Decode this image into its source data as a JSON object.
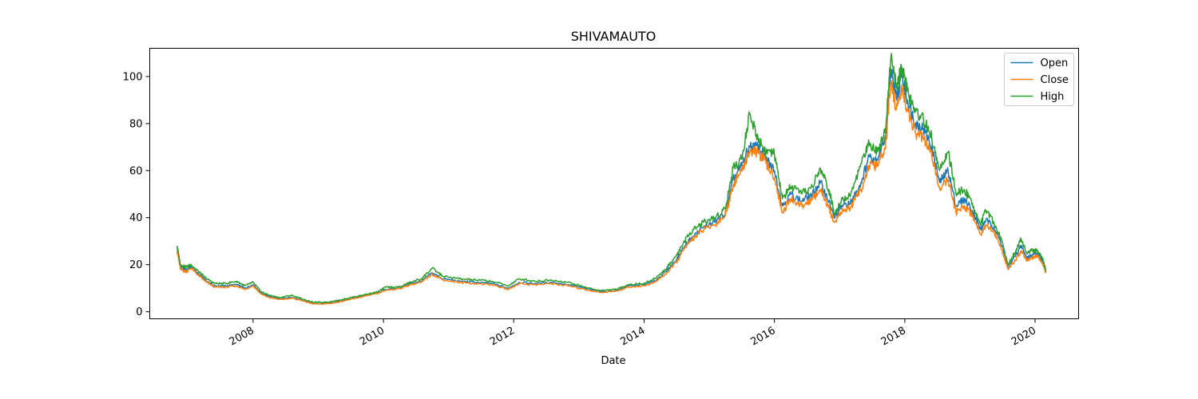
{
  "chart_data": {
    "type": "line",
    "title": "SHIVAMAUTO",
    "xlabel": "Date",
    "ylabel": "",
    "x_ticks": [
      "2008",
      "2010",
      "2012",
      "2014",
      "2016",
      "2018",
      "2020"
    ],
    "y_ticks": [
      0,
      20,
      40,
      60,
      80,
      100
    ],
    "xlim": [
      "2006-06-01",
      "2020-09-01"
    ],
    "ylim": [
      -3,
      112
    ],
    "grid": false,
    "legend_position": "top-right",
    "series": [
      {
        "name": "Open",
        "color": "#1f77b4",
        "points": [
          [
            "2006-11-01",
            27
          ],
          [
            "2006-11-20",
            19
          ],
          [
            "2006-12-20",
            18
          ],
          [
            "2007-01-20",
            19
          ],
          [
            "2007-03-01",
            16
          ],
          [
            "2007-04-15",
            13
          ],
          [
            "2007-06-01",
            11
          ],
          [
            "2007-08-01",
            11
          ],
          [
            "2007-10-01",
            11.5
          ],
          [
            "2007-11-15",
            10
          ],
          [
            "2008-01-01",
            11.5
          ],
          [
            "2008-02-15",
            8
          ],
          [
            "2008-04-01",
            6.5
          ],
          [
            "2008-06-01",
            5.5
          ],
          [
            "2008-08-01",
            6
          ],
          [
            "2008-10-01",
            5
          ],
          [
            "2008-12-01",
            3.5
          ],
          [
            "2009-02-01",
            3.5
          ],
          [
            "2009-04-01",
            4
          ],
          [
            "2009-06-01",
            5
          ],
          [
            "2009-08-01",
            6
          ],
          [
            "2009-10-01",
            7
          ],
          [
            "2009-12-01",
            8
          ],
          [
            "2010-01-15",
            9.5
          ],
          [
            "2010-04-01",
            10
          ],
          [
            "2010-06-01",
            12
          ],
          [
            "2010-08-01",
            13
          ],
          [
            "2010-10-01",
            16.5
          ],
          [
            "2010-12-01",
            14
          ],
          [
            "2011-03-01",
            13
          ],
          [
            "2011-06-01",
            12.5
          ],
          [
            "2011-09-01",
            12
          ],
          [
            "2011-12-01",
            10
          ],
          [
            "2012-02-01",
            12.5
          ],
          [
            "2012-05-01",
            12
          ],
          [
            "2012-08-01",
            12.5
          ],
          [
            "2012-11-01",
            11.5
          ],
          [
            "2013-02-01",
            10
          ],
          [
            "2013-05-01",
            8.5
          ],
          [
            "2013-08-01",
            9
          ],
          [
            "2013-10-01",
            11
          ],
          [
            "2014-01-01",
            11.5
          ],
          [
            "2014-03-01",
            13
          ],
          [
            "2014-05-01",
            17
          ],
          [
            "2014-07-01",
            22
          ],
          [
            "2014-08-15",
            28
          ],
          [
            "2014-10-01",
            32
          ],
          [
            "2014-12-01",
            36
          ],
          [
            "2015-02-01",
            38
          ],
          [
            "2015-04-01",
            42
          ],
          [
            "2015-05-15",
            56
          ],
          [
            "2015-07-01",
            62
          ],
          [
            "2015-08-15",
            70
          ],
          [
            "2015-10-01",
            70
          ],
          [
            "2015-11-15",
            65
          ],
          [
            "2016-01-01",
            60
          ],
          [
            "2016-02-15",
            45
          ],
          [
            "2016-04-01",
            50
          ],
          [
            "2016-06-01",
            47
          ],
          [
            "2016-08-01",
            50
          ],
          [
            "2016-09-15",
            55
          ],
          [
            "2016-11-01",
            47
          ],
          [
            "2016-12-01",
            40
          ],
          [
            "2017-01-15",
            45
          ],
          [
            "2017-03-01",
            46
          ],
          [
            "2017-05-01",
            55
          ],
          [
            "2017-06-15",
            66
          ],
          [
            "2017-08-01",
            65
          ],
          [
            "2017-09-15",
            75
          ],
          [
            "2017-10-15",
            103
          ],
          [
            "2017-11-15",
            90
          ],
          [
            "2017-12-15",
            100
          ],
          [
            "2018-01-15",
            90
          ],
          [
            "2018-03-01",
            80
          ],
          [
            "2018-04-15",
            78
          ],
          [
            "2018-06-01",
            70
          ],
          [
            "2018-07-15",
            55
          ],
          [
            "2018-09-01",
            60
          ],
          [
            "2018-10-15",
            45
          ],
          [
            "2018-12-01",
            48
          ],
          [
            "2019-01-15",
            43
          ],
          [
            "2019-03-01",
            35
          ],
          [
            "2019-04-01",
            39
          ],
          [
            "2019-05-15",
            36
          ],
          [
            "2019-07-01",
            28
          ],
          [
            "2019-08-01",
            19
          ],
          [
            "2019-09-15",
            24
          ],
          [
            "2019-10-15",
            28
          ],
          [
            "2019-11-15",
            23
          ],
          [
            "2019-12-15",
            24
          ],
          [
            "2020-01-15",
            25
          ],
          [
            "2020-02-15",
            21
          ],
          [
            "2020-03-01",
            17
          ]
        ]
      },
      {
        "name": "Close",
        "color": "#ff7f0e",
        "points": [
          [
            "2006-11-01",
            26
          ],
          [
            "2006-11-20",
            18
          ],
          [
            "2006-12-20",
            17
          ],
          [
            "2007-01-20",
            18.5
          ],
          [
            "2007-03-01",
            15.5
          ],
          [
            "2007-04-15",
            12.5
          ],
          [
            "2007-06-01",
            10.5
          ],
          [
            "2007-08-01",
            10.5
          ],
          [
            "2007-10-01",
            11
          ],
          [
            "2007-11-15",
            9.5
          ],
          [
            "2008-01-01",
            11
          ],
          [
            "2008-02-15",
            7.5
          ],
          [
            "2008-04-01",
            6
          ],
          [
            "2008-06-01",
            5.2
          ],
          [
            "2008-08-01",
            5.8
          ],
          [
            "2008-10-01",
            4.8
          ],
          [
            "2008-12-01",
            3.3
          ],
          [
            "2009-02-01",
            3.3
          ],
          [
            "2009-04-01",
            3.8
          ],
          [
            "2009-06-01",
            4.8
          ],
          [
            "2009-08-01",
            5.8
          ],
          [
            "2009-10-01",
            6.8
          ],
          [
            "2009-12-01",
            7.8
          ],
          [
            "2010-01-15",
            9.2
          ],
          [
            "2010-04-01",
            9.8
          ],
          [
            "2010-06-01",
            11.5
          ],
          [
            "2010-08-01",
            12.5
          ],
          [
            "2010-10-01",
            16
          ],
          [
            "2010-12-01",
            13.5
          ],
          [
            "2011-03-01",
            12.5
          ],
          [
            "2011-06-01",
            12
          ],
          [
            "2011-09-01",
            11.5
          ],
          [
            "2011-12-01",
            9.5
          ],
          [
            "2012-02-01",
            12
          ],
          [
            "2012-05-01",
            11.5
          ],
          [
            "2012-08-01",
            12
          ],
          [
            "2012-11-01",
            11
          ],
          [
            "2013-02-01",
            9.5
          ],
          [
            "2013-05-01",
            8.2
          ],
          [
            "2013-08-01",
            8.8
          ],
          [
            "2013-10-01",
            10.5
          ],
          [
            "2014-01-01",
            11
          ],
          [
            "2014-03-01",
            12.5
          ],
          [
            "2014-05-01",
            16
          ],
          [
            "2014-07-01",
            21
          ],
          [
            "2014-08-15",
            27
          ],
          [
            "2014-10-01",
            31
          ],
          [
            "2014-12-01",
            35
          ],
          [
            "2015-02-01",
            37
          ],
          [
            "2015-04-01",
            41
          ],
          [
            "2015-05-15",
            54
          ],
          [
            "2015-07-01",
            60
          ],
          [
            "2015-08-15",
            68
          ],
          [
            "2015-10-01",
            68
          ],
          [
            "2015-11-15",
            63
          ],
          [
            "2016-01-01",
            57
          ],
          [
            "2016-02-15",
            42
          ],
          [
            "2016-04-01",
            48
          ],
          [
            "2016-06-01",
            45
          ],
          [
            "2016-08-01",
            48
          ],
          [
            "2016-09-15",
            52
          ],
          [
            "2016-11-01",
            44
          ],
          [
            "2016-12-01",
            38
          ],
          [
            "2017-01-15",
            43
          ],
          [
            "2017-03-01",
            44
          ],
          [
            "2017-05-01",
            52
          ],
          [
            "2017-06-15",
            62
          ],
          [
            "2017-08-01",
            62
          ],
          [
            "2017-09-15",
            70
          ],
          [
            "2017-10-15",
            98
          ],
          [
            "2017-11-15",
            86
          ],
          [
            "2017-12-15",
            95
          ],
          [
            "2018-01-15",
            86
          ],
          [
            "2018-03-01",
            76
          ],
          [
            "2018-04-15",
            74
          ],
          [
            "2018-06-01",
            66
          ],
          [
            "2018-07-15",
            53
          ],
          [
            "2018-09-01",
            56
          ],
          [
            "2018-10-15",
            42
          ],
          [
            "2018-12-01",
            45
          ],
          [
            "2019-01-15",
            41
          ],
          [
            "2019-03-01",
            33
          ],
          [
            "2019-04-01",
            37
          ],
          [
            "2019-05-15",
            34
          ],
          [
            "2019-07-01",
            26
          ],
          [
            "2019-08-01",
            18
          ],
          [
            "2019-09-15",
            22
          ],
          [
            "2019-10-15",
            26
          ],
          [
            "2019-11-15",
            22
          ],
          [
            "2019-12-15",
            23
          ],
          [
            "2020-01-15",
            24
          ],
          [
            "2020-02-15",
            20
          ],
          [
            "2020-03-01",
            16.5
          ]
        ]
      },
      {
        "name": "High",
        "color": "#2ca02c",
        "points": [
          [
            "2006-11-01",
            28
          ],
          [
            "2006-11-20",
            20
          ],
          [
            "2006-12-20",
            19
          ],
          [
            "2007-01-20",
            20
          ],
          [
            "2007-03-01",
            17
          ],
          [
            "2007-04-15",
            14
          ],
          [
            "2007-06-01",
            12
          ],
          [
            "2007-08-01",
            12
          ],
          [
            "2007-10-01",
            13
          ],
          [
            "2007-11-15",
            11
          ],
          [
            "2008-01-01",
            12.5
          ],
          [
            "2008-02-15",
            8.5
          ],
          [
            "2008-04-01",
            7
          ],
          [
            "2008-06-01",
            6
          ],
          [
            "2008-08-01",
            7
          ],
          [
            "2008-10-01",
            5.5
          ],
          [
            "2008-12-01",
            4
          ],
          [
            "2009-02-01",
            4
          ],
          [
            "2009-04-01",
            4.5
          ],
          [
            "2009-06-01",
            5.5
          ],
          [
            "2009-08-01",
            6.5
          ],
          [
            "2009-10-01",
            7.5
          ],
          [
            "2009-12-01",
            8.5
          ],
          [
            "2010-01-15",
            10.5
          ],
          [
            "2010-04-01",
            10.5
          ],
          [
            "2010-06-01",
            12.5
          ],
          [
            "2010-08-01",
            14
          ],
          [
            "2010-10-01",
            18.5
          ],
          [
            "2010-12-01",
            15
          ],
          [
            "2011-03-01",
            14
          ],
          [
            "2011-06-01",
            13.5
          ],
          [
            "2011-09-01",
            13
          ],
          [
            "2011-12-01",
            11
          ],
          [
            "2012-02-01",
            14
          ],
          [
            "2012-05-01",
            13
          ],
          [
            "2012-08-01",
            13.5
          ],
          [
            "2012-11-01",
            12.5
          ],
          [
            "2013-02-01",
            10.5
          ],
          [
            "2013-05-01",
            9
          ],
          [
            "2013-08-01",
            9.5
          ],
          [
            "2013-10-01",
            11.5
          ],
          [
            "2014-01-01",
            12
          ],
          [
            "2014-03-01",
            14
          ],
          [
            "2014-05-01",
            18
          ],
          [
            "2014-07-01",
            24
          ],
          [
            "2014-08-15",
            30
          ],
          [
            "2014-10-01",
            35
          ],
          [
            "2014-12-01",
            38
          ],
          [
            "2015-02-01",
            40
          ],
          [
            "2015-04-01",
            44
          ],
          [
            "2015-05-15",
            61
          ],
          [
            "2015-07-01",
            65
          ],
          [
            "2015-08-15",
            84
          ],
          [
            "2015-10-01",
            74
          ],
          [
            "2015-11-15",
            68
          ],
          [
            "2016-01-01",
            67
          ],
          [
            "2016-02-15",
            48
          ],
          [
            "2016-04-01",
            53
          ],
          [
            "2016-06-01",
            50
          ],
          [
            "2016-08-01",
            53
          ],
          [
            "2016-09-15",
            61
          ],
          [
            "2016-11-01",
            52
          ],
          [
            "2016-12-01",
            42
          ],
          [
            "2017-01-15",
            48
          ],
          [
            "2017-03-01",
            49
          ],
          [
            "2017-05-01",
            63
          ],
          [
            "2017-06-15",
            72
          ],
          [
            "2017-08-01",
            68
          ],
          [
            "2017-09-15",
            78
          ],
          [
            "2017-10-15",
            108
          ],
          [
            "2017-11-15",
            95
          ],
          [
            "2017-12-15",
            104
          ],
          [
            "2018-01-15",
            94
          ],
          [
            "2018-03-01",
            85
          ],
          [
            "2018-04-15",
            82
          ],
          [
            "2018-06-01",
            74
          ],
          [
            "2018-07-15",
            60
          ],
          [
            "2018-09-01",
            68
          ],
          [
            "2018-10-15",
            50
          ],
          [
            "2018-12-01",
            52
          ],
          [
            "2019-01-15",
            46
          ],
          [
            "2019-03-01",
            37
          ],
          [
            "2019-04-01",
            43
          ],
          [
            "2019-05-15",
            38
          ],
          [
            "2019-07-01",
            30
          ],
          [
            "2019-08-01",
            20
          ],
          [
            "2019-09-15",
            26
          ],
          [
            "2019-10-15",
            31
          ],
          [
            "2019-11-15",
            25
          ],
          [
            "2019-12-15",
            26
          ],
          [
            "2020-01-15",
            26
          ],
          [
            "2020-02-15",
            22
          ],
          [
            "2020-03-01",
            17.5
          ]
        ]
      }
    ]
  }
}
